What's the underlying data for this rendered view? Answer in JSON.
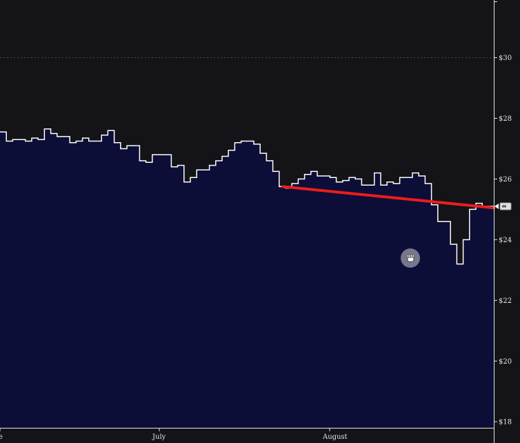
{
  "colors": {
    "background": "#131318",
    "area_fill": "#0c0e38",
    "line": "#ffffff",
    "trendline": "#ee1c1c",
    "grid": "#4a4a52",
    "axis": "#e6e6e6",
    "cursor": "#8a8a9c"
  },
  "chart_data": {
    "type": "area",
    "step": true,
    "xlabel": "",
    "ylabel": "",
    "ylim": [
      17.8,
      31.9
    ],
    "y_ticks": [
      {
        "value": 30,
        "label": "$30"
      },
      {
        "value": 28,
        "label": "$28"
      },
      {
        "value": 26,
        "label": "$26"
      },
      {
        "value": 24,
        "label": "$24"
      },
      {
        "value": 22,
        "label": "$22"
      },
      {
        "value": 20,
        "label": "$20"
      },
      {
        "value": 18,
        "label": "$18"
      }
    ],
    "y_gridlines": [
      30,
      20
    ],
    "x_ticks": [
      {
        "label": "e"
      },
      {
        "label": "July"
      },
      {
        "label": "August"
      }
    ],
    "series": [
      {
        "values": [
          27.55,
          27.25,
          27.3,
          27.3,
          27.25,
          27.35,
          27.3,
          27.65,
          27.5,
          27.4,
          27.4,
          27.2,
          27.25,
          27.35,
          27.25,
          27.25,
          27.45,
          27.6,
          27.2,
          27.0,
          27.1,
          27.1,
          26.6,
          26.55,
          26.8,
          26.8,
          26.8,
          26.4,
          26.45,
          25.9,
          26.05,
          26.3,
          26.3,
          26.45,
          26.6,
          26.75,
          26.95,
          27.2,
          27.25,
          27.25,
          27.15,
          26.85,
          26.6,
          26.25,
          25.75,
          25.7,
          25.85,
          26.0,
          26.15,
          26.25,
          26.1,
          26.1,
          26.05,
          25.9,
          25.95,
          26.05,
          26.0,
          25.8,
          25.8,
          26.2,
          25.8,
          25.9,
          25.85,
          26.05,
          26.05,
          26.2,
          26.1,
          25.85,
          25.15,
          24.6,
          24.6,
          23.85,
          23.2,
          24.0,
          25.0,
          25.2,
          25.1,
          25.1
        ]
      }
    ],
    "trendline": {
      "start_index": 44,
      "start_value": 25.75,
      "end_value": 25.05
    },
    "last_value_marker": true
  }
}
